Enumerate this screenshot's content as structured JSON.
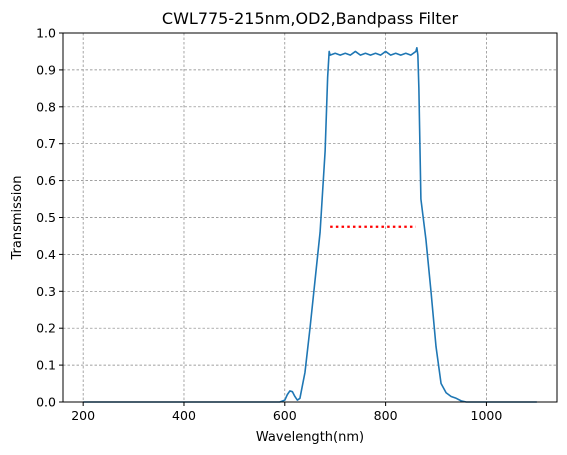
{
  "chart_data": {
    "type": "line",
    "title": "CWL775-215nm,OD2,Bandpass Filter",
    "xlabel": "Wavelength(nm)",
    "ylabel": "Transmission",
    "xlim": [
      160,
      1140
    ],
    "ylim": [
      0,
      1.0
    ],
    "x_ticks": [
      200,
      400,
      600,
      800,
      1000
    ],
    "y_ticks": [
      0.0,
      0.1,
      0.2,
      0.3,
      0.4,
      0.5,
      0.6,
      0.7,
      0.8,
      0.9,
      1.0
    ],
    "grid": true,
    "series": [
      {
        "color": "#1f77b4",
        "style": "solid",
        "x": [
          200,
          300,
          400,
          500,
          590,
          600,
          605,
          610,
          615,
          620,
          625,
          630,
          640,
          650,
          660,
          670,
          680,
          685,
          688,
          690,
          700,
          710,
          720,
          730,
          740,
          750,
          760,
          770,
          780,
          790,
          800,
          810,
          820,
          830,
          840,
          850,
          860,
          862,
          864,
          866,
          868,
          870,
          880,
          890,
          900,
          910,
          920,
          930,
          940,
          950,
          960,
          970,
          1000,
          1050,
          1100
        ],
        "y": [
          0.0,
          0.0,
          0.0,
          0.0,
          0.0,
          0.005,
          0.02,
          0.03,
          0.028,
          0.015,
          0.005,
          0.01,
          0.08,
          0.2,
          0.33,
          0.46,
          0.68,
          0.88,
          0.95,
          0.94,
          0.945,
          0.94,
          0.945,
          0.94,
          0.95,
          0.94,
          0.945,
          0.94,
          0.945,
          0.94,
          0.95,
          0.94,
          0.945,
          0.94,
          0.945,
          0.94,
          0.95,
          0.96,
          0.94,
          0.85,
          0.7,
          0.55,
          0.44,
          0.3,
          0.15,
          0.05,
          0.025,
          0.015,
          0.01,
          0.003,
          0.0,
          0.0,
          0.0,
          0.0,
          0.0
        ]
      },
      {
        "color": "#ff0000",
        "style": "dotted",
        "x": [
          690,
          860
        ],
        "y": [
          0.475,
          0.475
        ]
      }
    ]
  }
}
